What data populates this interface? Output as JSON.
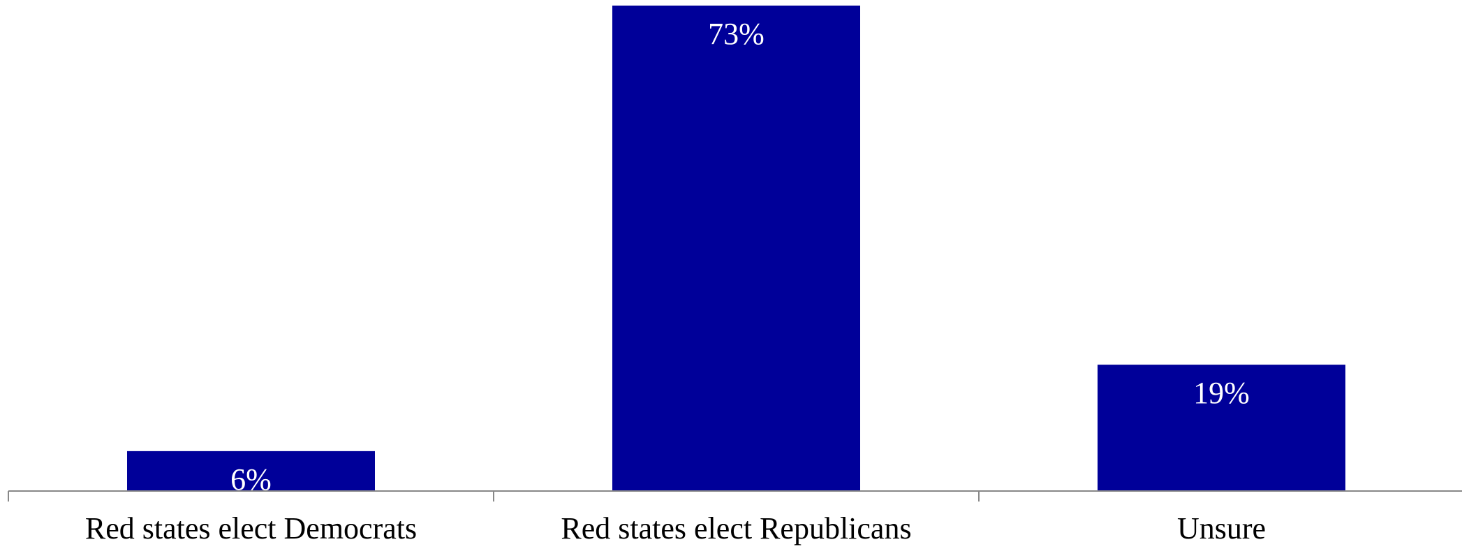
{
  "chart_data": {
    "type": "bar",
    "categories": [
      "Red states elect Democrats",
      "Red states elect Republicans",
      "Unsure"
    ],
    "values": [
      6,
      73,
      19
    ],
    "data_labels": [
      "6%",
      "73%",
      "19%"
    ],
    "unit": "%",
    "ylim": [
      0,
      73
    ],
    "grid": false,
    "legend": "none",
    "colors": {
      "bar": "#000099",
      "label": "#ffffff",
      "axis": "#888888",
      "category_text": "#000000"
    }
  }
}
